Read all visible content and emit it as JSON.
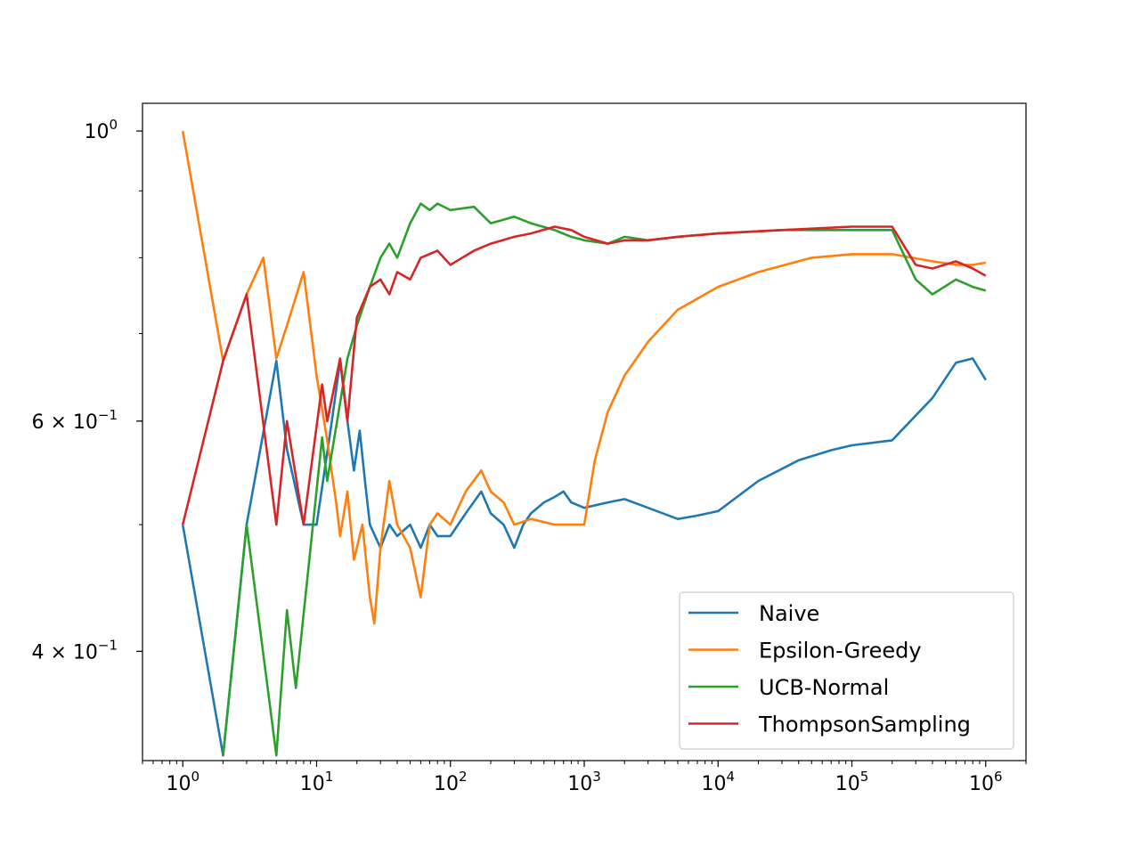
{
  "chart_data": {
    "type": "line",
    "title": "",
    "xlabel": "",
    "ylabel": "",
    "xscale": "log",
    "yscale": "log",
    "xlim": [
      0.5,
      2000000
    ],
    "ylim": [
      0.33,
      1.05
    ],
    "x_ticks": [
      {
        "value": 1,
        "base": "10",
        "exp": "0"
      },
      {
        "value": 10,
        "base": "10",
        "exp": "1"
      },
      {
        "value": 100,
        "base": "10",
        "exp": "2"
      },
      {
        "value": 1000,
        "base": "10",
        "exp": "3"
      },
      {
        "value": 10000,
        "base": "10",
        "exp": "4"
      },
      {
        "value": 100000,
        "base": "10",
        "exp": "5"
      },
      {
        "value": 1000000,
        "base": "10",
        "exp": "6"
      }
    ],
    "y_ticks": [
      {
        "value": 1.0,
        "mant": "",
        "base": "10",
        "exp": "0"
      },
      {
        "value": 0.6,
        "mant": "6 × ",
        "base": "10",
        "exp": "−1"
      },
      {
        "value": 0.4,
        "mant": "4 × ",
        "base": "10",
        "exp": "−1"
      }
    ],
    "legend_position": "lower-right",
    "grid": false,
    "series": [
      {
        "name": "Naive",
        "color": "#1f77b4",
        "points": [
          [
            1,
            0.5
          ],
          [
            2,
            0.333
          ],
          [
            3,
            0.5
          ],
          [
            5,
            0.667
          ],
          [
            6,
            0.571
          ],
          [
            8,
            0.5
          ],
          [
            10,
            0.5
          ],
          [
            13,
            0.6
          ],
          [
            15,
            0.667
          ],
          [
            17,
            0.6
          ],
          [
            19,
            0.55
          ],
          [
            21,
            0.59
          ],
          [
            23,
            0.54
          ],
          [
            25,
            0.5
          ],
          [
            30,
            0.48
          ],
          [
            35,
            0.5
          ],
          [
            40,
            0.49
          ],
          [
            50,
            0.5
          ],
          [
            60,
            0.48
          ],
          [
            70,
            0.5
          ],
          [
            80,
            0.49
          ],
          [
            100,
            0.49
          ],
          [
            130,
            0.51
          ],
          [
            170,
            0.53
          ],
          [
            200,
            0.51
          ],
          [
            250,
            0.5
          ],
          [
            300,
            0.48
          ],
          [
            350,
            0.5
          ],
          [
            400,
            0.51
          ],
          [
            500,
            0.52
          ],
          [
            600,
            0.525
          ],
          [
            700,
            0.53
          ],
          [
            800,
            0.52
          ],
          [
            1000,
            0.515
          ],
          [
            1500,
            0.52
          ],
          [
            2000,
            0.523
          ],
          [
            3000,
            0.515
          ],
          [
            5000,
            0.505
          ],
          [
            7000,
            0.508
          ],
          [
            10000,
            0.512
          ],
          [
            20000,
            0.54
          ],
          [
            40000,
            0.56
          ],
          [
            70000,
            0.57
          ],
          [
            100000,
            0.575
          ],
          [
            200000,
            0.58
          ],
          [
            400000,
            0.625
          ],
          [
            600000,
            0.665
          ],
          [
            800000,
            0.67
          ],
          [
            1000000,
            0.645
          ]
        ]
      },
      {
        "name": "Epsilon-Greedy",
        "color": "#ff7f0e",
        "points": [
          [
            1,
            1.0
          ],
          [
            2,
            0.667
          ],
          [
            3,
            0.75
          ],
          [
            4,
            0.8
          ],
          [
            5,
            0.67
          ],
          [
            6,
            0.71
          ],
          [
            8,
            0.78
          ],
          [
            10,
            0.65
          ],
          [
            12,
            0.58
          ],
          [
            14,
            0.52
          ],
          [
            15,
            0.49
          ],
          [
            17,
            0.53
          ],
          [
            19,
            0.47
          ],
          [
            22,
            0.5
          ],
          [
            25,
            0.44
          ],
          [
            27,
            0.42
          ],
          [
            30,
            0.48
          ],
          [
            35,
            0.54
          ],
          [
            40,
            0.5
          ],
          [
            50,
            0.48
          ],
          [
            60,
            0.44
          ],
          [
            70,
            0.5
          ],
          [
            80,
            0.51
          ],
          [
            100,
            0.5
          ],
          [
            130,
            0.53
          ],
          [
            170,
            0.55
          ],
          [
            200,
            0.53
          ],
          [
            250,
            0.52
          ],
          [
            300,
            0.5
          ],
          [
            400,
            0.505
          ],
          [
            600,
            0.5
          ],
          [
            800,
            0.5
          ],
          [
            1000,
            0.5
          ],
          [
            1200,
            0.56
          ],
          [
            1500,
            0.61
          ],
          [
            2000,
            0.65
          ],
          [
            3000,
            0.69
          ],
          [
            5000,
            0.73
          ],
          [
            10000,
            0.76
          ],
          [
            20000,
            0.78
          ],
          [
            50000,
            0.8
          ],
          [
            100000,
            0.805
          ],
          [
            200000,
            0.805
          ],
          [
            400000,
            0.795
          ],
          [
            600000,
            0.79
          ],
          [
            800000,
            0.79
          ],
          [
            1000000,
            0.793
          ]
        ]
      },
      {
        "name": "UCB-Normal",
        "color": "#2ca02c",
        "points": [
          [
            2,
            0.333
          ],
          [
            3,
            0.5
          ],
          [
            5,
            0.333
          ],
          [
            6,
            0.43
          ],
          [
            7,
            0.375
          ],
          [
            11,
            0.583
          ],
          [
            12,
            0.54
          ],
          [
            17,
            0.67
          ],
          [
            20,
            0.71
          ],
          [
            25,
            0.76
          ],
          [
            30,
            0.8
          ],
          [
            35,
            0.82
          ],
          [
            40,
            0.8
          ],
          [
            50,
            0.85
          ],
          [
            60,
            0.88
          ],
          [
            70,
            0.87
          ],
          [
            80,
            0.88
          ],
          [
            100,
            0.87
          ],
          [
            150,
            0.875
          ],
          [
            200,
            0.85
          ],
          [
            300,
            0.86
          ],
          [
            400,
            0.85
          ],
          [
            600,
            0.84
          ],
          [
            800,
            0.83
          ],
          [
            1000,
            0.825
          ],
          [
            1500,
            0.82
          ],
          [
            2000,
            0.83
          ],
          [
            3000,
            0.825
          ],
          [
            5000,
            0.83
          ],
          [
            10000,
            0.835
          ],
          [
            30000,
            0.84
          ],
          [
            100000,
            0.84
          ],
          [
            200000,
            0.84
          ],
          [
            300000,
            0.77
          ],
          [
            400000,
            0.75
          ],
          [
            600000,
            0.77
          ],
          [
            800000,
            0.76
          ],
          [
            1000000,
            0.755
          ]
        ]
      },
      {
        "name": "ThompsonSampling",
        "color": "#d62728",
        "points": [
          [
            1,
            0.5
          ],
          [
            2,
            0.667
          ],
          [
            3,
            0.75
          ],
          [
            5,
            0.5
          ],
          [
            6,
            0.6
          ],
          [
            8,
            0.5
          ],
          [
            11,
            0.64
          ],
          [
            12,
            0.6
          ],
          [
            15,
            0.67
          ],
          [
            17,
            0.6
          ],
          [
            20,
            0.72
          ],
          [
            25,
            0.76
          ],
          [
            30,
            0.77
          ],
          [
            35,
            0.75
          ],
          [
            40,
            0.78
          ],
          [
            50,
            0.77
          ],
          [
            60,
            0.8
          ],
          [
            80,
            0.81
          ],
          [
            100,
            0.79
          ],
          [
            150,
            0.81
          ],
          [
            200,
            0.82
          ],
          [
            300,
            0.83
          ],
          [
            400,
            0.835
          ],
          [
            600,
            0.845
          ],
          [
            800,
            0.84
          ],
          [
            1000,
            0.83
          ],
          [
            1500,
            0.82
          ],
          [
            2000,
            0.825
          ],
          [
            3000,
            0.825
          ],
          [
            5000,
            0.83
          ],
          [
            10000,
            0.835
          ],
          [
            30000,
            0.84
          ],
          [
            100000,
            0.845
          ],
          [
            200000,
            0.845
          ],
          [
            300000,
            0.79
          ],
          [
            400000,
            0.785
          ],
          [
            600000,
            0.795
          ],
          [
            800000,
            0.785
          ],
          [
            1000000,
            0.775
          ]
        ]
      }
    ]
  }
}
